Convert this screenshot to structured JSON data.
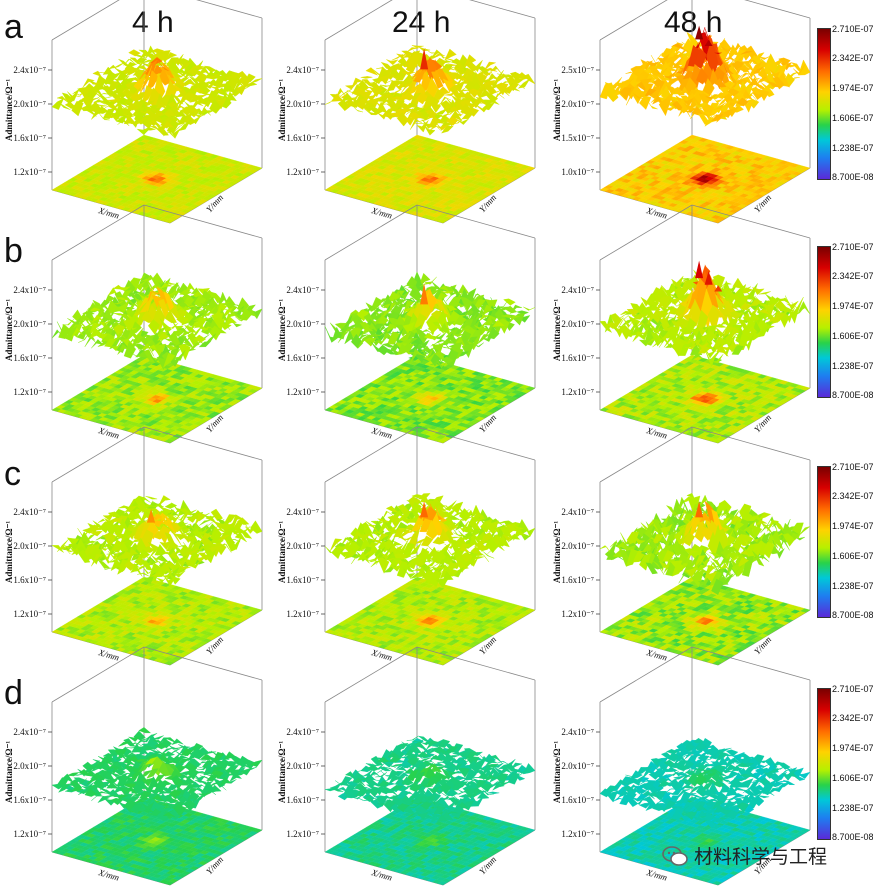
{
  "figure": {
    "columns": [
      "4 h",
      "24 h",
      "48 h"
    ],
    "rows": [
      "a",
      "b",
      "c",
      "d"
    ],
    "colorbar_labels": [
      "2.710E-07",
      "2.342E-07",
      "1.974E-07",
      "1.606E-07",
      "1.238E-07",
      "8.700E-08"
    ],
    "watermark": "材料科学与工程"
  },
  "chart_data": [
    {
      "type": "surface3d",
      "row": "a",
      "time": "4 h",
      "ylabel": "Admittance/Ω⁻¹",
      "yticks": [
        "1.2x10⁻⁷",
        "1.6x10⁻⁷",
        "2.0x10⁻⁷",
        "2.4x10⁻⁷"
      ],
      "xlabel": "X/mm",
      "zlabel": "Y/mm",
      "baseline": 1.78e-07,
      "peak": 2.2e-07,
      "noise": 1.5e-08,
      "spikes": []
    },
    {
      "type": "surface3d",
      "row": "a",
      "time": "24 h",
      "ylabel": "Admittance/Ω⁻¹",
      "yticks": [
        "1.2x10⁻⁷",
        "1.6x10⁻⁷",
        "2.0x10⁻⁷",
        "2.4x10⁻⁷"
      ],
      "xlabel": "X/mm",
      "zlabel": "Y/mm",
      "baseline": 1.82e-07,
      "peak": 2.2e-07,
      "noise": 1.5e-08,
      "spikes": [
        2.35e-07
      ]
    },
    {
      "type": "surface3d",
      "row": "a",
      "time": "48 h",
      "ylabel": "Admittance/Ω⁻¹",
      "yticks": [
        "1.0x10⁻⁷",
        "1.5x10⁻⁷",
        "2.0x10⁻⁷",
        "2.5x10⁻⁷"
      ],
      "xlabel": "X/mm",
      "zlabel": "Y/mm",
      "baseline": 1.95e-07,
      "peak": 2.6e-07,
      "noise": 2e-08,
      "spikes": [
        2.65e-07,
        2.55e-07,
        2.45e-07
      ]
    },
    {
      "type": "surface3d",
      "row": "b",
      "time": "4 h",
      "ylabel": "Admittance/Ω⁻¹",
      "yticks": [
        "1.2x10⁻⁷",
        "1.6x10⁻⁷",
        "2.0x10⁻⁷",
        "2.4x10⁻⁷"
      ],
      "xlabel": "X/mm",
      "zlabel": "Y/mm",
      "baseline": 1.68e-07,
      "peak": 2.08e-07,
      "noise": 2e-08,
      "spikes": []
    },
    {
      "type": "surface3d",
      "row": "b",
      "time": "24 h",
      "ylabel": "Admittance/Ω⁻¹",
      "yticks": [
        "1.2x10⁻⁷",
        "1.6x10⁻⁷",
        "2.0x10⁻⁷",
        "2.4x10⁻⁷"
      ],
      "xlabel": "X/mm",
      "zlabel": "Y/mm",
      "baseline": 1.65e-07,
      "peak": 2e-07,
      "noise": 2e-08,
      "spikes": [
        2.15e-07
      ]
    },
    {
      "type": "surface3d",
      "row": "b",
      "time": "48 h",
      "ylabel": "Admittance/Ω⁻¹",
      "yticks": [
        "1.2x10⁻⁷",
        "1.6x10⁻⁷",
        "2.0x10⁻⁷",
        "2.4x10⁻⁷"
      ],
      "xlabel": "X/mm",
      "zlabel": "Y/mm",
      "baseline": 1.72e-07,
      "peak": 2.35e-07,
      "noise": 2.2e-08,
      "spikes": [
        2.45e-07,
        2.4e-07,
        2.3e-07
      ]
    },
    {
      "type": "surface3d",
      "row": "c",
      "time": "4 h",
      "ylabel": "Admittance/Ω⁻¹",
      "yticks": [
        "1.2x10⁻⁷",
        "1.6x10⁻⁷",
        "2.0x10⁻⁷",
        "2.4x10⁻⁷"
      ],
      "xlabel": "X/mm",
      "zlabel": "Y/mm",
      "baseline": 1.72e-07,
      "peak": 2.05e-07,
      "noise": 1.8e-08,
      "spikes": [
        2.1e-07
      ]
    },
    {
      "type": "surface3d",
      "row": "c",
      "time": "24 h",
      "ylabel": "Admittance/Ω⁻¹",
      "yticks": [
        "1.2x10⁻⁷",
        "1.6x10⁻⁷",
        "2.0x10⁻⁷",
        "2.4x10⁻⁷"
      ],
      "xlabel": "X/mm",
      "zlabel": "Y/mm",
      "baseline": 1.72e-07,
      "peak": 2.12e-07,
      "noise": 1.8e-08,
      "spikes": [
        2.2e-07
      ]
    },
    {
      "type": "surface3d",
      "row": "c",
      "time": "48 h",
      "ylabel": "Admittance/Ω⁻¹",
      "yticks": [
        "1.2x10⁻⁷",
        "1.6x10⁻⁷",
        "2.0x10⁻⁷",
        "2.4x10⁻⁷"
      ],
      "xlabel": "X/mm",
      "zlabel": "Y/mm",
      "baseline": 1.68e-07,
      "peak": 2.12e-07,
      "noise": 2.5e-08,
      "spikes": [
        2.2e-07
      ]
    },
    {
      "type": "surface3d",
      "row": "d",
      "time": "4 h",
      "ylabel": "Admittance/Ω⁻¹",
      "yticks": [
        "1.2x10⁻⁷",
        "1.6x10⁻⁷",
        "2.0x10⁻⁷",
        "2.4x10⁻⁷"
      ],
      "xlabel": "X/mm",
      "zlabel": "Y/mm",
      "baseline": 1.5e-07,
      "peak": 1.7e-07,
      "noise": 1.2e-08,
      "spikes": []
    },
    {
      "type": "surface3d",
      "row": "d",
      "time": "24 h",
      "ylabel": "Admittance/Ω⁻¹",
      "yticks": [
        "1.2x10⁻⁷",
        "1.6x10⁻⁷",
        "2.0x10⁻⁷",
        "2.4x10⁻⁷"
      ],
      "xlabel": "X/mm",
      "zlabel": "Y/mm",
      "baseline": 1.45e-07,
      "peak": 1.6e-07,
      "noise": 1.2e-08,
      "spikes": []
    },
    {
      "type": "surface3d",
      "row": "d",
      "time": "48 h",
      "ylabel": "Admittance/Ω⁻¹",
      "yticks": [
        "1.2x10⁻⁷",
        "1.6x10⁻⁷",
        "2.0x10⁻⁷",
        "2.4x10⁻⁷"
      ],
      "xlabel": "X/mm",
      "zlabel": "Y/mm",
      "baseline": 1.4e-07,
      "peak": 1.55e-07,
      "noise": 1.2e-08,
      "spikes": []
    }
  ]
}
